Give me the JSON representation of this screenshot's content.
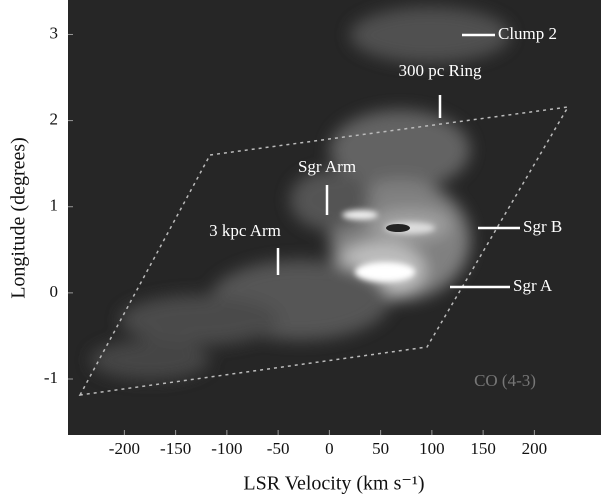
{
  "chart_data": {
    "type": "image",
    "xlabel": "LSR Velocity (km s⁻¹)",
    "ylabel": "Longitude (degrees)",
    "xlim": [
      -255,
      265
    ],
    "xticks": [
      -200,
      -150,
      -100,
      -50,
      0,
      50,
      100,
      150,
      200
    ],
    "ylim": [
      -1.65,
      3.4
    ],
    "yticks": [
      -1,
      0,
      1,
      2,
      3
    ],
    "annotations": [
      "Clump 2",
      "300 pc Ring",
      "Sgr Arm",
      "3 kpc Arm",
      "Sgr B",
      "Sgr A",
      "CO (4-3)"
    ]
  }
}
